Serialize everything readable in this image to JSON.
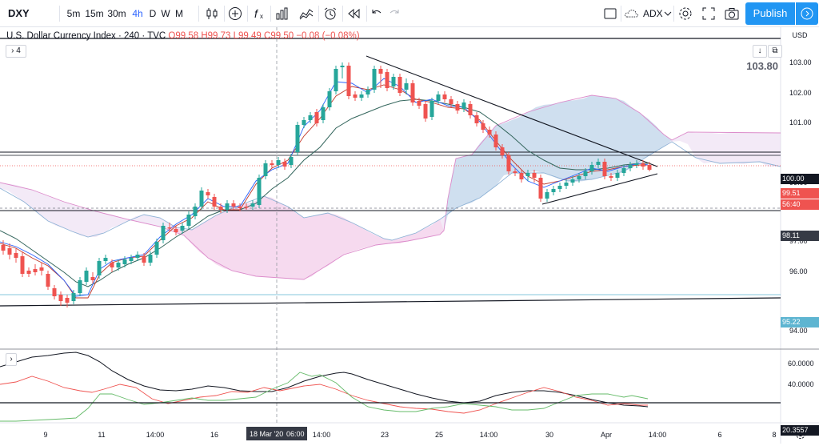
{
  "toolbar": {
    "symbol": "DXY",
    "intervals": [
      "5m",
      "15m",
      "30m",
      "4h",
      "D",
      "W",
      "M"
    ],
    "active_interval": "4h",
    "compare_icon": "candles-icon",
    "indicator_label": "ADX",
    "publish_label": "Publish"
  },
  "legend": {
    "title": "U.S. Dollar Currency Index · 240 · TVC",
    "open": "O99.58",
    "high": "H99.73",
    "low": "L99.49",
    "close": "C99.50",
    "change": "−0.08 (−0.08%)",
    "indicator_count": "4"
  },
  "price_axis": {
    "currency": "USD",
    "ticks": [
      "103.00",
      "102.00",
      "101.00",
      "100.00",
      "99.00",
      "98.00",
      "97.00",
      "96.00",
      "95.00",
      "94.00"
    ],
    "labels": [
      {
        "text": "103.80",
        "color": "#5d606b"
      },
      {
        "text": "100.00",
        "color": "#131722"
      },
      {
        "text": "99.51",
        "color": "#ef5350"
      },
      {
        "text": "56:40",
        "color": "#ef5350"
      },
      {
        "text": "98.11",
        "color": "#363a45"
      },
      {
        "text": "95.22",
        "color": "#5eb5d1"
      }
    ]
  },
  "adx_axis": {
    "ticks": [
      "60.0000",
      "40.0000"
    ],
    "current": "20.3557"
  },
  "time_axis": {
    "ticks": [
      "9",
      "11",
      "14:00",
      "16",
      "23",
      "25",
      "14:00",
      "30",
      "Apr",
      "14:00",
      "6",
      "8"
    ],
    "crosshair_label": "18 Mar '20",
    "crosshair_time": "06:00",
    "mid_label": "14:00"
  },
  "colors": {
    "bull": "#26a69a",
    "bear": "#ef5350",
    "kumo_bull": "#c3dbec",
    "kumo_bear": "#f9cfe9",
    "accent": "#2196f3"
  }
}
